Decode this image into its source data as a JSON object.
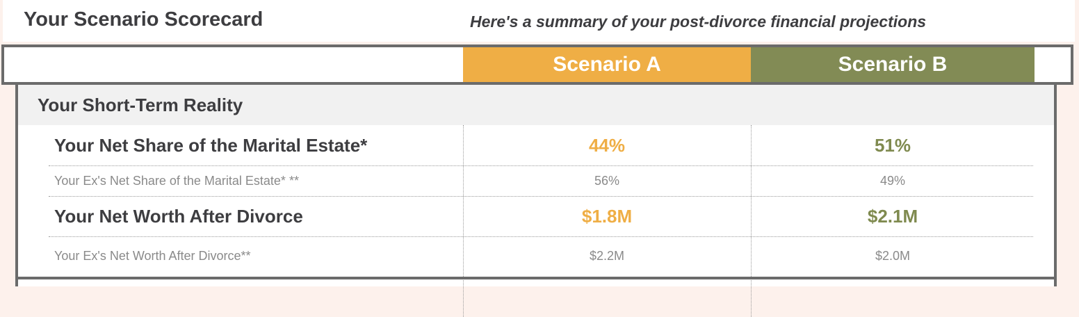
{
  "header": {
    "title": "Your Scenario Scorecard",
    "subtitle": "Here's a summary of your post-divorce financial projections"
  },
  "scenarios": {
    "a": {
      "label": "Scenario A",
      "color": "#efae45"
    },
    "b": {
      "label": "Scenario B",
      "color": "#828b55"
    }
  },
  "section": {
    "title": "Your Short-Term Reality",
    "rows": [
      {
        "label": "Your Net Share of the Marital Estate*",
        "a": "44%",
        "b": "51%"
      },
      {
        "label": "Your Ex's Net Share of the Marital Estate* **",
        "a": "56%",
        "b": "49%"
      },
      {
        "label": "Your Net Worth After Divorce",
        "a": "$1.8M",
        "b": "$2.1M"
      },
      {
        "label": "Your Ex's Net Worth After Divorce**",
        "a": "$2.2M",
        "b": "$2.0M"
      }
    ]
  }
}
